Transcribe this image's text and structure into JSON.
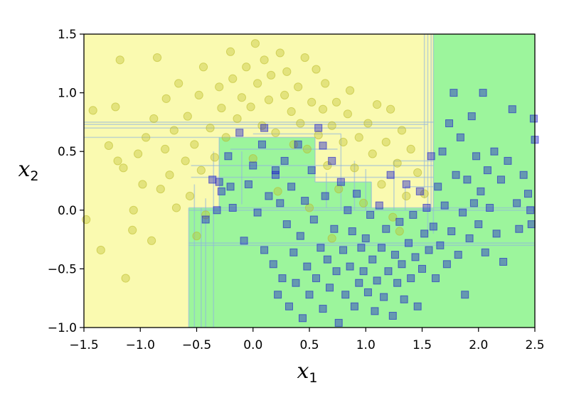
{
  "chart_data": {
    "type": "scatter",
    "title": "",
    "xlabel": "x",
    "xlabel_sub": "1",
    "ylabel": "x",
    "ylabel_sub": "2",
    "xlim": [
      -1.5,
      2.5
    ],
    "ylim": [
      -1.0,
      1.5
    ],
    "xticks": [
      "−1.5",
      "−1.0",
      "−0.5",
      "0.0",
      "0.5",
      "1.0",
      "1.5",
      "2.0",
      "2.5"
    ],
    "yticks": [
      "−1.0",
      "−0.5",
      "0.0",
      "0.5",
      "1.0",
      "1.5"
    ],
    "grid": false,
    "legend": "none",
    "colors": {
      "class0_region": "#fafab0",
      "class1_region": "#9cf59c",
      "class0_marker": "#bcbc2a",
      "class1_marker": "#1a1acc",
      "boundary": "#8fb4e0"
    },
    "series": [
      {
        "marker": "circle",
        "points": [
          [
            -1.48,
            -0.08
          ],
          [
            -1.42,
            0.85
          ],
          [
            -1.35,
            -0.34
          ],
          [
            -1.28,
            0.55
          ],
          [
            -1.22,
            0.88
          ],
          [
            -1.2,
            0.42
          ],
          [
            -1.15,
            0.36
          ],
          [
            -1.13,
            -0.58
          ],
          [
            -1.18,
            1.28
          ],
          [
            -1.07,
            -0.17
          ],
          [
            -1.06,
            0.0
          ],
          [
            -1.02,
            0.48
          ],
          [
            -0.98,
            0.22
          ],
          [
            -0.95,
            0.62
          ],
          [
            -0.9,
            -0.26
          ],
          [
            -0.88,
            0.78
          ],
          [
            -0.85,
            1.3
          ],
          [
            -0.82,
            0.18
          ],
          [
            -0.78,
            0.52
          ],
          [
            -0.77,
            0.95
          ],
          [
            -0.74,
            0.3
          ],
          [
            -0.7,
            0.68
          ],
          [
            -0.68,
            0.02
          ],
          [
            -0.66,
            1.08
          ],
          [
            -0.6,
            0.42
          ],
          [
            -0.58,
            0.8
          ],
          [
            -0.56,
            0.12
          ],
          [
            -0.52,
            0.56
          ],
          [
            -0.48,
            0.98
          ],
          [
            -0.46,
            0.34
          ],
          [
            -0.44,
            1.22
          ],
          [
            -0.42,
            -0.04
          ],
          [
            -0.38,
            0.7
          ],
          [
            -0.34,
            0.45
          ],
          [
            -0.3,
            1.05
          ],
          [
            -0.28,
            0.87
          ],
          [
            -0.24,
            0.62
          ],
          [
            -0.2,
            1.35
          ],
          [
            -0.18,
            1.12
          ],
          [
            -0.14,
            0.78
          ],
          [
            -0.1,
            0.96
          ],
          [
            -0.06,
            1.22
          ],
          [
            -0.02,
            0.88
          ],
          [
            0.02,
            1.42
          ],
          [
            0.04,
            1.08
          ],
          [
            0.08,
            0.72
          ],
          [
            0.1,
            1.28
          ],
          [
            0.14,
            0.94
          ],
          [
            0.16,
            1.15
          ],
          [
            0.2,
            0.66
          ],
          [
            0.24,
            1.34
          ],
          [
            0.28,
            0.98
          ],
          [
            0.3,
            1.18
          ],
          [
            0.34,
            0.84
          ],
          [
            0.36,
            0.56
          ],
          [
            0.4,
            1.05
          ],
          [
            0.42,
            0.74
          ],
          [
            0.46,
            1.3
          ],
          [
            0.48,
            0.52
          ],
          [
            0.52,
            0.92
          ],
          [
            0.56,
            1.2
          ],
          [
            0.58,
            0.64
          ],
          [
            0.62,
            0.86
          ],
          [
            0.64,
            1.08
          ],
          [
            0.66,
            0.38
          ],
          [
            0.7,
            0.72
          ],
          [
            0.74,
            0.92
          ],
          [
            0.76,
            0.18
          ],
          [
            0.8,
            0.58
          ],
          [
            0.84,
            0.82
          ],
          [
            0.86,
            1.02
          ],
          [
            0.9,
            0.36
          ],
          [
            0.94,
            0.62
          ],
          [
            0.98,
            0.06
          ],
          [
            1.02,
            0.74
          ],
          [
            1.06,
            0.48
          ],
          [
            1.1,
            0.9
          ],
          [
            1.14,
            0.22
          ],
          [
            1.18,
            0.58
          ],
          [
            1.22,
            0.86
          ],
          [
            1.24,
            -0.06
          ],
          [
            1.28,
            0.4
          ],
          [
            1.32,
            0.68
          ],
          [
            1.36,
            0.12
          ],
          [
            1.4,
            0.52
          ],
          [
            1.46,
            0.32
          ],
          [
            1.52,
            0.14
          ],
          [
            1.3,
            -0.18
          ],
          [
            0.7,
            -0.24
          ],
          [
            0.5,
            0.02
          ],
          [
            0.22,
            0.16
          ],
          [
            0.0,
            0.44
          ],
          [
            -0.5,
            -0.22
          ]
        ]
      },
      {
        "marker": "square",
        "points": [
          [
            -0.42,
            -0.08
          ],
          [
            -0.36,
            0.26
          ],
          [
            -0.32,
            0.0
          ],
          [
            -0.28,
            0.16
          ],
          [
            -0.22,
            0.46
          ],
          [
            -0.18,
            0.02
          ],
          [
            -0.12,
            0.66
          ],
          [
            -0.08,
            -0.26
          ],
          [
            -0.04,
            0.22
          ],
          [
            0.0,
            0.38
          ],
          [
            0.04,
            -0.02
          ],
          [
            0.08,
            0.56
          ],
          [
            0.1,
            -0.34
          ],
          [
            0.14,
            0.12
          ],
          [
            0.18,
            -0.46
          ],
          [
            0.2,
            0.3
          ],
          [
            0.22,
            -0.72
          ],
          [
            0.24,
            0.06
          ],
          [
            0.26,
            -0.58
          ],
          [
            0.28,
            0.42
          ],
          [
            0.3,
            -0.12
          ],
          [
            0.32,
            -0.82
          ],
          [
            0.34,
            0.2
          ],
          [
            0.36,
            -0.36
          ],
          [
            0.38,
            -0.62
          ],
          [
            0.4,
            0.56
          ],
          [
            0.42,
            -0.22
          ],
          [
            0.44,
            -0.92
          ],
          [
            0.46,
            0.08
          ],
          [
            0.48,
            -0.48
          ],
          [
            0.5,
            -0.72
          ],
          [
            0.52,
            0.34
          ],
          [
            0.54,
            -0.08
          ],
          [
            0.56,
            -0.58
          ],
          [
            0.58,
            0.7
          ],
          [
            0.6,
            -0.32
          ],
          [
            0.62,
            -0.84
          ],
          [
            0.64,
            0.12
          ],
          [
            0.66,
            -0.42
          ],
          [
            0.68,
            -0.66
          ],
          [
            0.7,
            0.42
          ],
          [
            0.72,
            -0.16
          ],
          [
            0.74,
            -0.52
          ],
          [
            0.76,
            -0.96
          ],
          [
            0.78,
            0.24
          ],
          [
            0.8,
            -0.34
          ],
          [
            0.82,
            -0.72
          ],
          [
            0.84,
            0.0
          ],
          [
            0.86,
            -0.48
          ],
          [
            0.88,
            -0.18
          ],
          [
            0.9,
            -0.82
          ],
          [
            0.92,
            0.14
          ],
          [
            0.94,
            -0.62
          ],
          [
            0.96,
            -0.32
          ],
          [
            0.98,
            -0.52
          ],
          [
            1.0,
            -0.24
          ],
          [
            1.02,
            -0.7
          ],
          [
            1.04,
            -0.04
          ],
          [
            1.06,
            -0.42
          ],
          [
            1.08,
            -0.86
          ],
          [
            1.1,
            -0.6
          ],
          [
            1.12,
            0.04
          ],
          [
            1.14,
            -0.32
          ],
          [
            1.16,
            -0.74
          ],
          [
            1.18,
            -0.16
          ],
          [
            1.2,
            -0.52
          ],
          [
            1.22,
            0.3
          ],
          [
            1.24,
            -0.9
          ],
          [
            1.26,
            -0.38
          ],
          [
            1.28,
            -0.62
          ],
          [
            1.3,
            -0.1
          ],
          [
            1.32,
            -0.46
          ],
          [
            1.34,
            -0.76
          ],
          [
            1.36,
            0.22
          ],
          [
            1.38,
            -0.28
          ],
          [
            1.4,
            -0.58
          ],
          [
            1.42,
            -0.04
          ],
          [
            1.44,
            -0.4
          ],
          [
            1.46,
            -0.82
          ],
          [
            1.48,
            0.16
          ],
          [
            1.5,
            -0.5
          ],
          [
            1.52,
            -0.2
          ],
          [
            1.54,
            0.02
          ],
          [
            1.56,
            -0.34
          ],
          [
            1.58,
            0.46
          ],
          [
            1.6,
            -0.14
          ],
          [
            1.62,
            -0.58
          ],
          [
            1.64,
            0.2
          ],
          [
            1.66,
            -0.3
          ],
          [
            1.68,
            0.5
          ],
          [
            1.7,
            0.04
          ],
          [
            1.72,
            -0.46
          ],
          [
            1.74,
            0.74
          ],
          [
            1.76,
            -0.18
          ],
          [
            1.78,
            1.0
          ],
          [
            1.8,
            0.3
          ],
          [
            1.82,
            -0.38
          ],
          [
            1.84,
            0.62
          ],
          [
            1.86,
            -0.02
          ],
          [
            1.88,
            -0.72
          ],
          [
            1.9,
            0.26
          ],
          [
            1.92,
            -0.24
          ],
          [
            1.94,
            0.8
          ],
          [
            1.96,
            0.06
          ],
          [
            1.98,
            0.46
          ],
          [
            2.0,
            -0.12
          ],
          [
            2.02,
            0.16
          ],
          [
            2.04,
            1.0
          ],
          [
            2.06,
            -0.36
          ],
          [
            2.08,
            0.34
          ],
          [
            2.1,
            0.02
          ],
          [
            2.14,
            0.5
          ],
          [
            2.16,
            -0.2
          ],
          [
            2.2,
            0.26
          ],
          [
            2.22,
            -0.44
          ],
          [
            2.26,
            0.42
          ],
          [
            2.3,
            0.86
          ],
          [
            2.34,
            0.06
          ],
          [
            2.36,
            -0.16
          ],
          [
            2.4,
            0.3
          ],
          [
            2.44,
            0.14
          ],
          [
            2.47,
            -0.12
          ],
          [
            2.49,
            0.78
          ],
          [
            2.5,
            0.6
          ],
          [
            2.46,
            0.0
          ],
          [
            -0.3,
            0.24
          ],
          [
            -0.2,
            0.2
          ],
          [
            0.1,
            0.7
          ],
          [
            0.2,
            0.34
          ],
          [
            0.62,
            0.55
          ]
        ]
      }
    ]
  }
}
